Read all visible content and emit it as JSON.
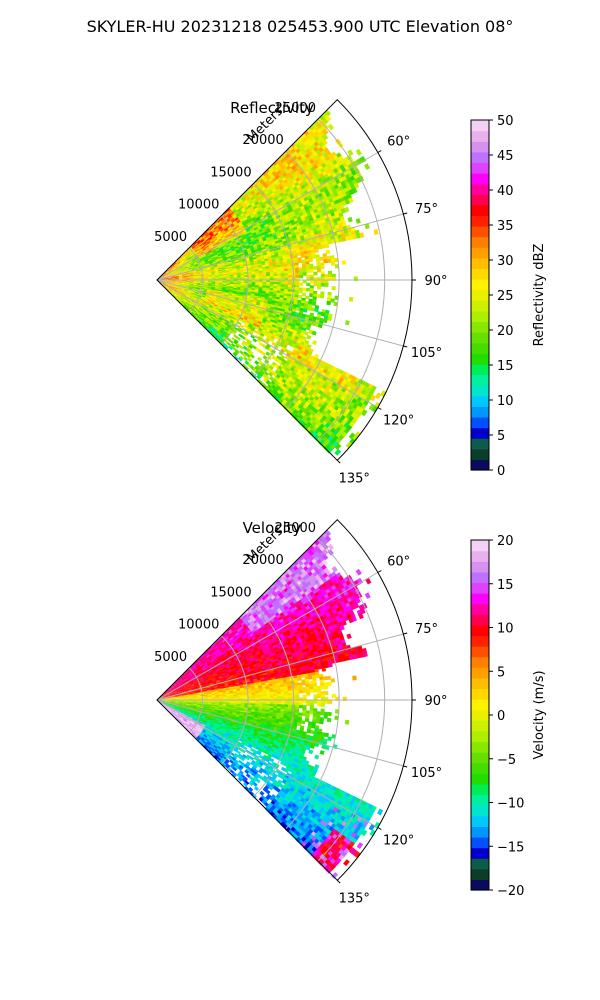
{
  "figure": {
    "suptitle": "SKYLER-HU  20231218  025453.900 UTC Elevation 08°"
  },
  "chart_data": [
    {
      "type": "heatmap",
      "projection": "polar-sector",
      "title": "Reflectivity",
      "radial_label": "Meters",
      "radial_ticks": [
        5000,
        10000,
        15000,
        20000,
        25000
      ],
      "radial_tick_labels": [
        "5000",
        "10000",
        "15000",
        "20000",
        "25000"
      ],
      "rlim": [
        0,
        28000
      ],
      "azimuth_range_deg": [
        45,
        135
      ],
      "azimuth_ticks": [
        60,
        75,
        90,
        105,
        120,
        135
      ],
      "azimuth_tick_labels": [
        "60°",
        "75°",
        "90°",
        "105°",
        "120°",
        "135°"
      ],
      "grid": true,
      "colorbar": {
        "label": "Reflectivity dBZ",
        "range": [
          0,
          50
        ],
        "ticks": [
          0,
          5,
          10,
          15,
          20,
          25,
          30,
          35,
          40,
          45,
          50
        ],
        "tick_labels": [
          "0",
          "5",
          "10",
          "15",
          "20",
          "25",
          "30",
          "35",
          "40",
          "45",
          "50"
        ],
        "colors": [
          "#0a0a5e",
          "#0b3d2b",
          "#0d5c4a",
          "#0000cc",
          "#0050ff",
          "#0096ff",
          "#00c8ff",
          "#00e5cc",
          "#00f0a0",
          "#00ee55",
          "#22dd00",
          "#44dd00",
          "#66e000",
          "#88e800",
          "#aaf000",
          "#ccf000",
          "#e8f000",
          "#fff200",
          "#ffd800",
          "#ffbe00",
          "#ffa000",
          "#ff8000",
          "#ff5000",
          "#ff2000",
          "#ff0000",
          "#ff0050",
          "#ff00a0",
          "#ff00ff",
          "#e040ff",
          "#c070ff",
          "#d890f0",
          "#eab0ee",
          "#f5d0f5"
        ]
      }
    },
    {
      "type": "heatmap",
      "projection": "polar-sector",
      "title": "Velocity",
      "radial_label": "Meters",
      "radial_ticks": [
        5000,
        10000,
        15000,
        20000,
        25000
      ],
      "radial_tick_labels": [
        "5000",
        "10000",
        "15000",
        "20000",
        "25000"
      ],
      "rlim": [
        0,
        28000
      ],
      "azimuth_range_deg": [
        45,
        135
      ],
      "azimuth_ticks": [
        60,
        75,
        90,
        105,
        120,
        135
      ],
      "azimuth_tick_labels": [
        "60°",
        "75°",
        "90°",
        "105°",
        "120°",
        "135°"
      ],
      "grid": true,
      "colorbar": {
        "label": "Velocity (m/s)",
        "range": [
          -20,
          20
        ],
        "ticks": [
          -20,
          -15,
          -10,
          -5,
          0,
          5,
          10,
          15,
          20
        ],
        "tick_labels": [
          "−20",
          "−15",
          "−10",
          "−5",
          "0",
          "5",
          "10",
          "15",
          "20"
        ],
        "colors": [
          "#0a0a5e",
          "#0b3d2b",
          "#0d5c4a",
          "#0000cc",
          "#0050ff",
          "#0096ff",
          "#00c8ff",
          "#00e5cc",
          "#00f0a0",
          "#00ee55",
          "#22dd00",
          "#44dd00",
          "#66e000",
          "#88e800",
          "#aaf000",
          "#ccf000",
          "#e8f000",
          "#fff200",
          "#ffd800",
          "#ffbe00",
          "#ffa000",
          "#ff8000",
          "#ff5000",
          "#ff2000",
          "#ff0000",
          "#ff0050",
          "#ff00a0",
          "#ff00ff",
          "#e040ff",
          "#c070ff",
          "#d890f0",
          "#eab0ee",
          "#f5d0f5"
        ]
      }
    }
  ]
}
